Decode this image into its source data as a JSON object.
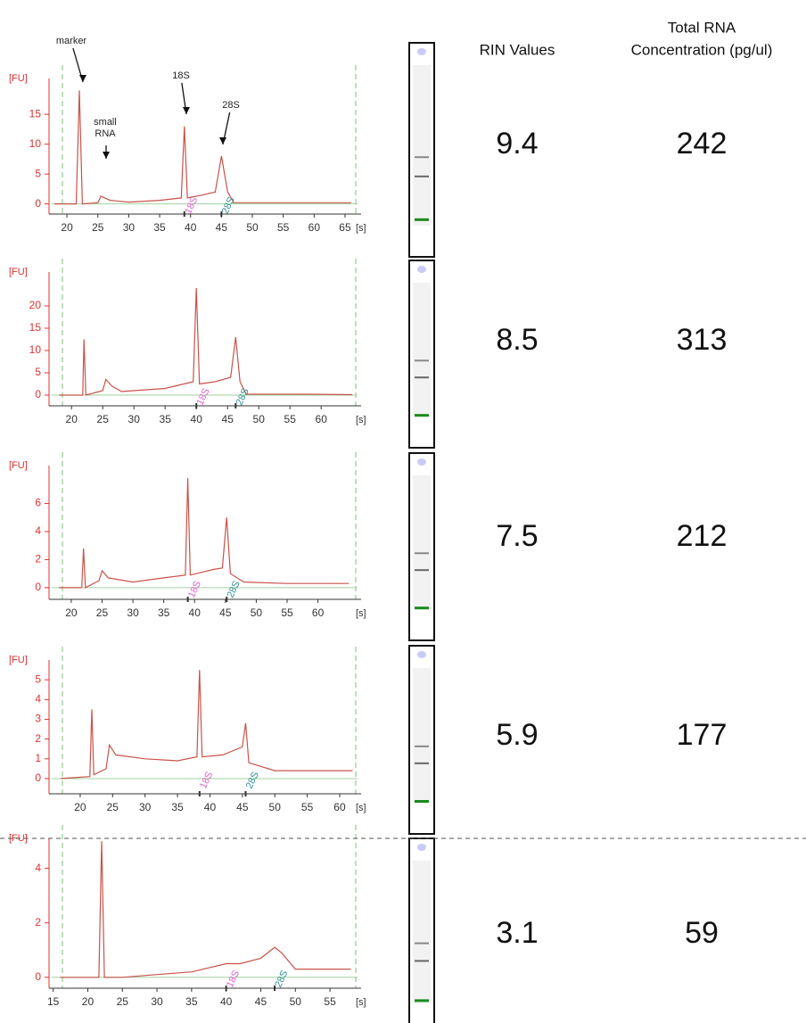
{
  "chart_data": [
    {
      "type": "line",
      "ylabel": "[FU]",
      "xlabel": "[s]",
      "xlim": [
        17.1,
        67.6
      ],
      "ylim": [
        -1.7,
        21
      ],
      "xticks": [
        20,
        25,
        30,
        35,
        40,
        45,
        50,
        55,
        60,
        65
      ],
      "yticks": [
        0,
        5,
        10,
        15
      ],
      "series": [
        {
          "color": "#c8534a",
          "x": [
            18,
            21.5,
            22,
            22.5,
            25,
            25.5,
            27,
            30,
            35,
            38.5,
            39,
            39.5,
            42,
            44,
            45,
            46,
            47,
            55,
            66
          ],
          "values": [
            0,
            0,
            19,
            0,
            0.2,
            1.3,
            0.6,
            0.3,
            0.6,
            1,
            13,
            1,
            1.5,
            2,
            8,
            2,
            0.2,
            0.2,
            0.2
          ]
        }
      ],
      "peak_labels": [
        "18S",
        "28S"
      ],
      "annotations": [
        "marker",
        "small RNA",
        "18S",
        "28S"
      ]
    },
    {
      "type": "line",
      "ylabel": "[FU]",
      "xlabel": "[s]",
      "xlim": [
        16.4,
        66.4
      ],
      "ylim": [
        -2.4,
        27.6
      ],
      "xticks": [
        20,
        25,
        30,
        35,
        40,
        45,
        50,
        55,
        60
      ],
      "yticks": [
        0,
        5,
        10,
        15,
        20
      ],
      "series": [
        {
          "color": "#c8534a",
          "x": [
            18,
            21.8,
            22,
            22.3,
            25,
            25.5,
            26.5,
            28,
            35,
            39.5,
            40,
            40.5,
            43,
            45.5,
            46.3,
            47,
            48,
            58,
            65
          ],
          "values": [
            0,
            0,
            12.5,
            0,
            1,
            3.5,
            2,
            0.8,
            1.5,
            3,
            24,
            2.5,
            3,
            4,
            13,
            3,
            0.2,
            0.2,
            0.1
          ]
        }
      ],
      "peak_labels": [
        "18S",
        "28S"
      ]
    },
    {
      "type": "line",
      "ylabel": "[FU]",
      "xlabel": "[s]",
      "xlim": [
        16.4,
        67
      ],
      "ylim": [
        -0.83,
        8.7
      ],
      "xticks": [
        20,
        25,
        30,
        35,
        40,
        45,
        50,
        55,
        60
      ],
      "yticks": [
        0,
        2,
        4,
        6
      ],
      "series": [
        {
          "color": "#c8534a",
          "x": [
            18,
            21.7,
            22,
            22.3,
            24.5,
            25,
            26,
            30,
            35,
            38.5,
            38.9,
            39.3,
            43,
            44.5,
            45.2,
            45.8,
            48,
            55,
            65
          ],
          "values": [
            0,
            0,
            2.8,
            0,
            0.5,
            1.2,
            0.7,
            0.4,
            0.7,
            0.9,
            7.8,
            0.9,
            1.3,
            1.4,
            5,
            1,
            0.4,
            0.3,
            0.3
          ]
        }
      ],
      "peak_labels": [
        "18S",
        "28S"
      ]
    },
    {
      "type": "line",
      "ylabel": "[FU]",
      "xlabel": "[s]",
      "xlim": [
        15.2,
        63.3
      ],
      "ylim": [
        -0.77,
        6
      ],
      "xticks": [
        20,
        25,
        30,
        35,
        40,
        45,
        50,
        55,
        60
      ],
      "yticks": [
        0,
        1,
        2,
        3,
        4,
        5
      ],
      "series": [
        {
          "color": "#c8534a",
          "x": [
            17,
            21.5,
            21.8,
            22.1,
            24,
            24.5,
            25.5,
            30,
            35,
            38,
            38.4,
            38.8,
            42,
            45,
            45.5,
            46,
            50,
            62
          ],
          "values": [
            0,
            0.1,
            3.5,
            0.2,
            0.5,
            1.7,
            1.2,
            1,
            0.9,
            1.1,
            5.5,
            1.1,
            1.2,
            1.6,
            2.8,
            0.8,
            0.4,
            0.4
          ]
        }
      ],
      "peak_labels": [
        "18S",
        "28S"
      ]
    },
    {
      "type": "line",
      "ylabel": "[FU]",
      "xlabel": "[s]",
      "xlim": [
        14.4,
        59.5
      ],
      "ylim": [
        -0.4,
        5.1
      ],
      "xticks": [
        15,
        20,
        25,
        30,
        35,
        40,
        45,
        50,
        55
      ],
      "yticks": [
        0,
        2,
        4
      ],
      "series": [
        {
          "color": "#c8534a",
          "x": [
            16,
            21.6,
            22,
            22.4,
            25,
            30,
            35,
            40,
            42,
            45,
            47,
            48,
            50,
            58
          ],
          "values": [
            0,
            0,
            5,
            0,
            0,
            0.1,
            0.2,
            0.5,
            0.5,
            0.7,
            1.1,
            0.9,
            0.3,
            0.3
          ]
        }
      ],
      "peak_labels": [
        "18S",
        "28S"
      ]
    }
  ],
  "table": {
    "rin_header": "RIN Values",
    "concentration_header": [
      "Total RNA",
      "Concentration (pg/ul)"
    ],
    "rows": [
      {
        "rin": 9.4,
        "concentration": 242
      },
      {
        "rin": 8.5,
        "concentration": 313
      },
      {
        "rin": 7.5,
        "concentration": 212
      },
      {
        "rin": 5.9,
        "concentration": 177
      },
      {
        "rin": 3.1,
        "concentration": 59
      }
    ]
  }
}
